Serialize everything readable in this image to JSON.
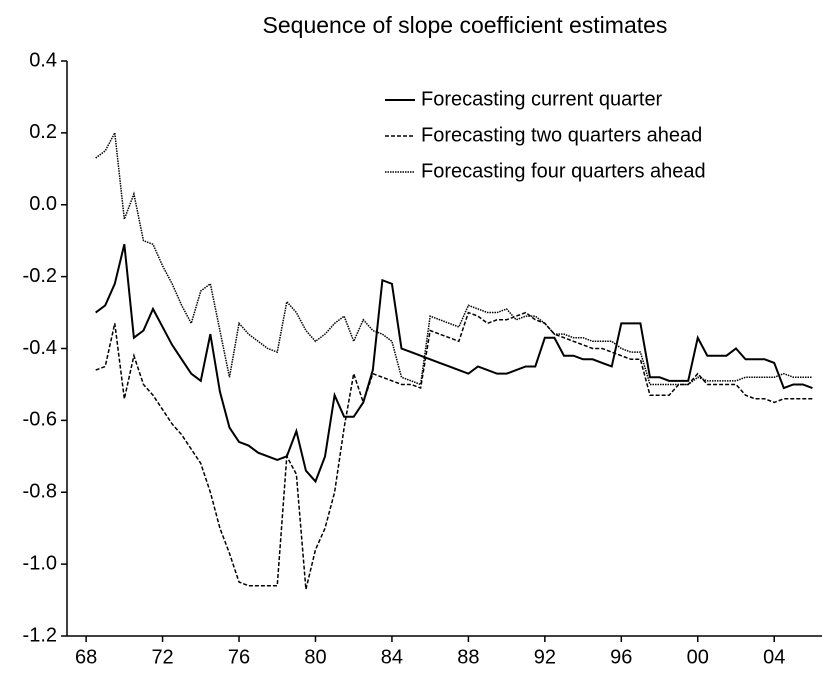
{
  "chart_data": {
    "type": "line",
    "title": "Sequence of slope coefficient estimates",
    "x": [
      1968.5,
      1969,
      1969.5,
      1970,
      1970.5,
      1971,
      1971.5,
      1972,
      1972.5,
      1973,
      1973.5,
      1974,
      1974.5,
      1975,
      1975.5,
      1976,
      1976.5,
      1977,
      1977.5,
      1978,
      1978.5,
      1979,
      1979.5,
      1980,
      1980.5,
      1981,
      1981.5,
      1982,
      1982.5,
      1983,
      1983.5,
      1984,
      1984.5,
      1985,
      1985.5,
      1986,
      1986.5,
      1987,
      1987.5,
      1988,
      1988.5,
      1989,
      1989.5,
      1990,
      1990.5,
      1991,
      1991.5,
      1992,
      1992.5,
      1993,
      1993.5,
      1994,
      1994.5,
      1995,
      1995.5,
      1996,
      1996.5,
      1997,
      1997.5,
      1998,
      1998.5,
      1999,
      1999.5,
      2000,
      2000.5,
      2001,
      2001.5,
      2002,
      2002.5,
      2003,
      2003.5,
      2004,
      2004.5,
      2005,
      2005.5,
      2006
    ],
    "series": [
      {
        "name": "Forecasting current quarter",
        "color": "#000000",
        "dash": "solid",
        "values": [
          -0.3,
          -0.28,
          -0.22,
          -0.11,
          -0.37,
          -0.35,
          -0.29,
          -0.34,
          -0.39,
          -0.43,
          -0.47,
          -0.49,
          -0.36,
          -0.52,
          -0.62,
          -0.66,
          -0.67,
          -0.69,
          -0.7,
          -0.71,
          -0.7,
          -0.63,
          -0.74,
          -0.77,
          -0.7,
          -0.53,
          -0.59,
          -0.59,
          -0.55,
          -0.46,
          -0.21,
          -0.22,
          -0.4,
          -0.41,
          -0.42,
          -0.43,
          -0.44,
          -0.45,
          -0.46,
          -0.47,
          -0.45,
          -0.46,
          -0.47,
          -0.47,
          -0.46,
          -0.45,
          -0.45,
          -0.37,
          -0.37,
          -0.42,
          -0.42,
          -0.43,
          -0.43,
          -0.44,
          -0.45,
          -0.33,
          -0.33,
          -0.33,
          -0.48,
          -0.48,
          -0.49,
          -0.49,
          -0.49,
          -0.37,
          -0.42,
          -0.42,
          -0.42,
          -0.4,
          -0.43,
          -0.43,
          -0.43,
          -0.44,
          -0.51,
          -0.5,
          -0.5,
          -0.51
        ]
      },
      {
        "name": "Forecasting two quarters ahead",
        "color": "#000000",
        "dash": "dashed",
        "values": [
          -0.46,
          -0.45,
          -0.33,
          -0.54,
          -0.42,
          -0.5,
          -0.53,
          -0.57,
          -0.61,
          -0.64,
          -0.68,
          -0.72,
          -0.8,
          -0.9,
          -0.97,
          -1.05,
          -1.06,
          -1.06,
          -1.06,
          -1.06,
          -0.7,
          -0.75,
          -1.07,
          -0.96,
          -0.9,
          -0.8,
          -0.62,
          -0.47,
          -0.55,
          -0.47,
          -0.48,
          -0.49,
          -0.5,
          -0.5,
          -0.51,
          -0.35,
          -0.36,
          -0.37,
          -0.38,
          -0.3,
          -0.31,
          -0.33,
          -0.32,
          -0.32,
          -0.31,
          -0.3,
          -0.32,
          -0.33,
          -0.36,
          -0.37,
          -0.38,
          -0.39,
          -0.4,
          -0.4,
          -0.41,
          -0.42,
          -0.43,
          -0.43,
          -0.53,
          -0.53,
          -0.53,
          -0.5,
          -0.5,
          -0.47,
          -0.5,
          -0.5,
          -0.5,
          -0.5,
          -0.53,
          -0.54,
          -0.54,
          -0.55,
          -0.54,
          -0.54,
          -0.54,
          -0.54
        ]
      },
      {
        "name": "Forecasting four quarters ahead",
        "color": "#000000",
        "dash": "dotted",
        "values": [
          0.13,
          0.15,
          0.2,
          -0.04,
          0.03,
          -0.1,
          -0.11,
          -0.17,
          -0.22,
          -0.28,
          -0.33,
          -0.24,
          -0.22,
          -0.35,
          -0.48,
          -0.33,
          -0.36,
          -0.38,
          -0.4,
          -0.41,
          -0.27,
          -0.3,
          -0.35,
          -0.38,
          -0.36,
          -0.33,
          -0.31,
          -0.38,
          -0.32,
          -0.35,
          -0.36,
          -0.38,
          -0.48,
          -0.49,
          -0.5,
          -0.31,
          -0.32,
          -0.33,
          -0.34,
          -0.28,
          -0.29,
          -0.3,
          -0.3,
          -0.29,
          -0.32,
          -0.31,
          -0.31,
          -0.33,
          -0.36,
          -0.36,
          -0.37,
          -0.37,
          -0.38,
          -0.38,
          -0.38,
          -0.4,
          -0.41,
          -0.41,
          -0.5,
          -0.5,
          -0.5,
          -0.5,
          -0.5,
          -0.48,
          -0.49,
          -0.49,
          -0.49,
          -0.49,
          -0.48,
          -0.48,
          -0.48,
          -0.48,
          -0.47,
          -0.48,
          -0.48,
          -0.48
        ]
      }
    ],
    "xlim": [
      1967,
      2006.5
    ],
    "xticks": [
      {
        "value": 1968,
        "label": "68"
      },
      {
        "value": 1972,
        "label": "72"
      },
      {
        "value": 1976,
        "label": "76"
      },
      {
        "value": 1980,
        "label": "80"
      },
      {
        "value": 1984,
        "label": "84"
      },
      {
        "value": 1988,
        "label": "88"
      },
      {
        "value": 1992,
        "label": "92"
      },
      {
        "value": 1996,
        "label": "96"
      },
      {
        "value": 2000,
        "label": "00"
      },
      {
        "value": 2004,
        "label": "04"
      }
    ],
    "ylim": [
      -1.2,
      0.4
    ],
    "yticks": [
      0.4,
      0.2,
      {
        "value": 0,
        "label": "0.0"
      },
      -0.2,
      -0.4,
      -0.6,
      -0.8,
      {
        "value": -1,
        "label": "-1.0"
      },
      -1.2
    ],
    "grid": false,
    "legend": "upper right"
  }
}
